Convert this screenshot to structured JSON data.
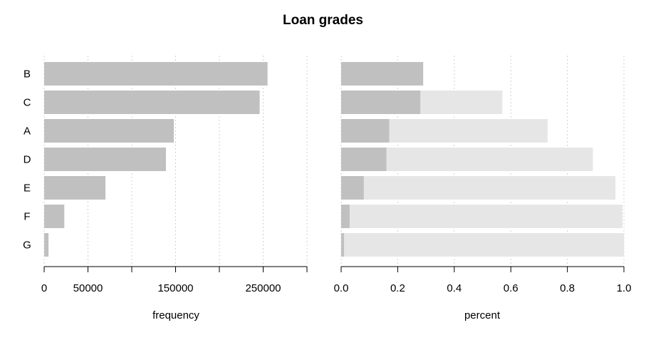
{
  "chart_data": [
    {
      "type": "bar",
      "orientation": "horizontal",
      "title": "Loan grades",
      "categories": [
        "B",
        "C",
        "A",
        "D",
        "E",
        "F",
        "G"
      ],
      "values": [
        255000,
        246000,
        148000,
        139000,
        70000,
        23000,
        5000
      ],
      "xlabel": "frequency",
      "xlim": [
        0,
        300000
      ],
      "xticks": [
        0,
        50000,
        100000,
        150000,
        200000,
        250000,
        300000
      ],
      "xtick_labels": [
        "0",
        "50000",
        "",
        "150000",
        "",
        "250000",
        ""
      ],
      "grid": "vertical dotted",
      "bar_color": "#c0c0c0"
    },
    {
      "type": "bar",
      "orientation": "horizontal",
      "stacked": "cumulative",
      "categories": [
        "B",
        "C",
        "A",
        "D",
        "E",
        "F",
        "G"
      ],
      "values": [
        0.29,
        0.28,
        0.17,
        0.16,
        0.08,
        0.03,
        0.01
      ],
      "cumulative": [
        0.29,
        0.57,
        0.73,
        0.89,
        0.97,
        0.995,
        1.0
      ],
      "xlabel": "percent",
      "xlim": [
        0,
        1
      ],
      "xticks": [
        0,
        0.2,
        0.4,
        0.6,
        0.8,
        1.0
      ],
      "xtick_labels": [
        "0.0",
        "0.2",
        "0.4",
        "0.6",
        "0.8",
        "1.0"
      ],
      "grid": "vertical dotted",
      "bar_color": "#c0c0c0",
      "cumulative_color": "#e6e6e6"
    }
  ]
}
